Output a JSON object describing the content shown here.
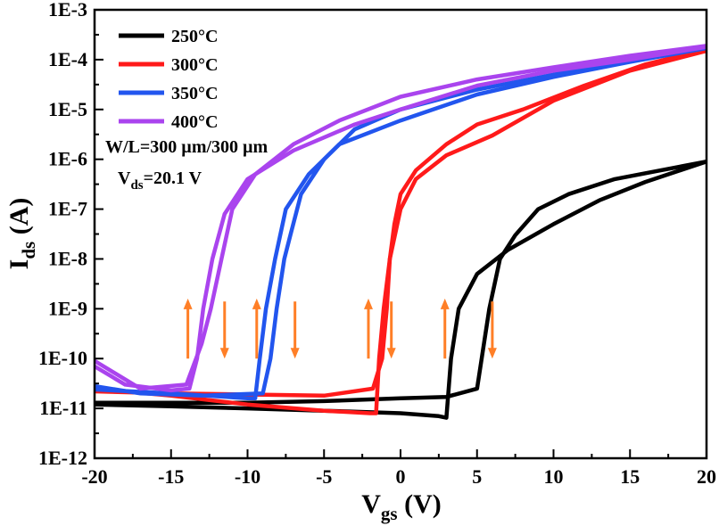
{
  "chart_data": {
    "type": "line",
    "title": "",
    "xlabel": {
      "main": "V",
      "sub": "gs",
      "rest": " (V)"
    },
    "ylabel": {
      "main": "I",
      "sub": "ds",
      "rest": " (A)"
    },
    "xlim": [
      -20,
      20
    ],
    "ylim_log10": [
      -12,
      -3
    ],
    "y_scale": "log",
    "x_ticks": [
      -20,
      -15,
      -10,
      -5,
      0,
      5,
      10,
      15,
      20
    ],
    "x_tick_labels": [
      "-20",
      "-15",
      "-10",
      "-5",
      "0",
      "5",
      "10",
      "15",
      "20"
    ],
    "y_tick_labels": [
      "1E-12",
      "1E-11",
      "1E-10",
      "1E-9",
      "1E-8",
      "1E-7",
      "1E-6",
      "1E-5",
      "1E-4",
      "1E-3"
    ],
    "grid": false,
    "legend_position": "top-left",
    "annotations": {
      "line1": "W/L=300 µm/300 µm",
      "line2_main": "V",
      "line2_sub": "ds",
      "line2_rest": "=20.1 V"
    },
    "series": [
      {
        "name": "250°C",
        "color": "#000000",
        "forward": [
          [
            -20,
            1.2e-11
          ],
          [
            -15,
            1.1e-11
          ],
          [
            -10,
            1e-11
          ],
          [
            -5,
            9e-12
          ],
          [
            0,
            8e-12
          ],
          [
            2.5,
            7e-12
          ],
          [
            3.0,
            6.5e-12
          ],
          [
            3.3,
            1e-10
          ],
          [
            3.8,
            1e-09
          ],
          [
            5,
            5e-09
          ],
          [
            7,
            1.5e-08
          ],
          [
            10,
            5e-08
          ],
          [
            13,
            1.5e-07
          ],
          [
            16,
            3.5e-07
          ],
          [
            20,
            9e-07
          ]
        ],
        "reverse": [
          [
            20,
            9e-07
          ],
          [
            17,
            6e-07
          ],
          [
            14,
            4e-07
          ],
          [
            11,
            2e-07
          ],
          [
            9,
            1e-07
          ],
          [
            7.5,
            3e-08
          ],
          [
            6.5,
            1e-08
          ],
          [
            5.8,
            1e-09
          ],
          [
            5.0,
            2.5e-11
          ],
          [
            3,
            1.7e-11
          ],
          [
            0,
            1.6e-11
          ],
          [
            -5,
            1.4e-11
          ],
          [
            -10,
            1.3e-11
          ],
          [
            -15,
            1.3e-11
          ],
          [
            -20,
            1.3e-11
          ]
        ]
      },
      {
        "name": "300°C",
        "color": "#ff1a1a",
        "forward": [
          [
            -20,
            2.5e-11
          ],
          [
            -15,
            1.8e-11
          ],
          [
            -10,
            1.2e-11
          ],
          [
            -5,
            9e-12
          ],
          [
            -2,
            8e-12
          ],
          [
            -1.6,
            8e-12
          ],
          [
            -1.4,
            1e-10
          ],
          [
            -1.1,
            1e-09
          ],
          [
            -0.7,
            1e-08
          ],
          [
            0,
            1e-07
          ],
          [
            1,
            4e-07
          ],
          [
            3,
            1.2e-06
          ],
          [
            6,
            3e-06
          ],
          [
            10,
            1.5e-05
          ],
          [
            15,
            6e-05
          ],
          [
            20,
            0.00015
          ]
        ],
        "reverse": [
          [
            20,
            0.00016
          ],
          [
            16,
            8e-05
          ],
          [
            12,
            3e-05
          ],
          [
            8,
            1e-05
          ],
          [
            5,
            5e-06
          ],
          [
            3,
            2e-06
          ],
          [
            1,
            6e-07
          ],
          [
            0,
            2e-07
          ],
          [
            -0.4,
            5e-08
          ],
          [
            -0.7,
            1e-08
          ],
          [
            -0.9,
            1e-09
          ],
          [
            -1.2,
            1e-10
          ],
          [
            -1.8,
            2.5e-11
          ],
          [
            -5,
            1.8e-11
          ],
          [
            -10,
            1.9e-11
          ],
          [
            -15,
            2e-11
          ],
          [
            -20,
            2.2e-11
          ]
        ]
      },
      {
        "name": "350°C",
        "color": "#2255ee",
        "forward": [
          [
            -20,
            2.4e-11
          ],
          [
            -15,
            2e-11
          ],
          [
            -10,
            1.6e-11
          ],
          [
            -9.5,
            1.6e-11
          ],
          [
            -9.2,
            1e-10
          ],
          [
            -8.8,
            1e-09
          ],
          [
            -8.2,
            1e-08
          ],
          [
            -7.5,
            1e-07
          ],
          [
            -6,
            5e-07
          ],
          [
            -4,
            2e-06
          ],
          [
            0,
            6e-06
          ],
          [
            5,
            2e-05
          ],
          [
            10,
            4.5e-05
          ],
          [
            15,
            9e-05
          ],
          [
            20,
            0.00017
          ]
        ],
        "reverse": [
          [
            20,
            0.00018
          ],
          [
            15,
            0.0001
          ],
          [
            10,
            5e-05
          ],
          [
            5,
            2.5e-05
          ],
          [
            0,
            1e-05
          ],
          [
            -3,
            4e-06
          ],
          [
            -5,
            1e-06
          ],
          [
            -6.5,
            2e-07
          ],
          [
            -7.2,
            3e-08
          ],
          [
            -7.6,
            1e-08
          ],
          [
            -8.1,
            1e-09
          ],
          [
            -8.5,
            1e-10
          ],
          [
            -9,
            2e-11
          ],
          [
            -13,
            1.8e-11
          ],
          [
            -17,
            2e-11
          ],
          [
            -20,
            2.8e-11
          ]
        ]
      },
      {
        "name": "400°C",
        "color": "#aa44ee",
        "forward": [
          [
            -20,
            7e-11
          ],
          [
            -18,
            3e-11
          ],
          [
            -15,
            2.3e-11
          ],
          [
            -13.8,
            2.5e-11
          ],
          [
            -13.3,
            1e-10
          ],
          [
            -12.9,
            1e-09
          ],
          [
            -12.3,
            1e-08
          ],
          [
            -11.5,
            8e-08
          ],
          [
            -10,
            4e-07
          ],
          [
            -7,
            1.5e-06
          ],
          [
            -3,
            5e-06
          ],
          [
            0,
            1e-05
          ],
          [
            5,
            3e-05
          ],
          [
            10,
            6e-05
          ],
          [
            15,
            0.0001
          ],
          [
            20,
            0.00018
          ]
        ],
        "reverse": [
          [
            20,
            0.00019
          ],
          [
            15,
            0.00012
          ],
          [
            10,
            7e-05
          ],
          [
            5,
            4e-05
          ],
          [
            0,
            1.8e-05
          ],
          [
            -4,
            6e-06
          ],
          [
            -7,
            2e-06
          ],
          [
            -9.5,
            5e-07
          ],
          [
            -11,
            1e-07
          ],
          [
            -11.7,
            1e-08
          ],
          [
            -12.4,
            1e-09
          ],
          [
            -13,
            2e-10
          ],
          [
            -14,
            3e-11
          ],
          [
            -17,
            2.5e-11
          ],
          [
            -20,
            9e-11
          ]
        ]
      }
    ],
    "arrows": [
      {
        "x": -13.9,
        "y_from": 1e-10,
        "y_to": 1.6e-09,
        "direction": "up",
        "color": "#ff7f27"
      },
      {
        "x": -11.5,
        "y_from": 1.4e-09,
        "y_to": 1e-10,
        "direction": "down",
        "color": "#ff7f27"
      },
      {
        "x": -9.4,
        "y_from": 1e-10,
        "y_to": 1.6e-09,
        "direction": "up",
        "color": "#ff7f27"
      },
      {
        "x": -6.9,
        "y_from": 1.4e-09,
        "y_to": 1e-10,
        "direction": "down",
        "color": "#ff7f27"
      },
      {
        "x": -2.1,
        "y_from": 1e-10,
        "y_to": 1.6e-09,
        "direction": "up",
        "color": "#ff7f27"
      },
      {
        "x": -0.6,
        "y_from": 1.4e-09,
        "y_to": 1e-10,
        "direction": "down",
        "color": "#ff7f27"
      },
      {
        "x": 2.9,
        "y_from": 1e-10,
        "y_to": 1.6e-09,
        "direction": "up",
        "color": "#ff7f27"
      },
      {
        "x": 6.0,
        "y_from": 1.4e-09,
        "y_to": 1e-10,
        "direction": "down",
        "color": "#ff7f27"
      }
    ]
  }
}
